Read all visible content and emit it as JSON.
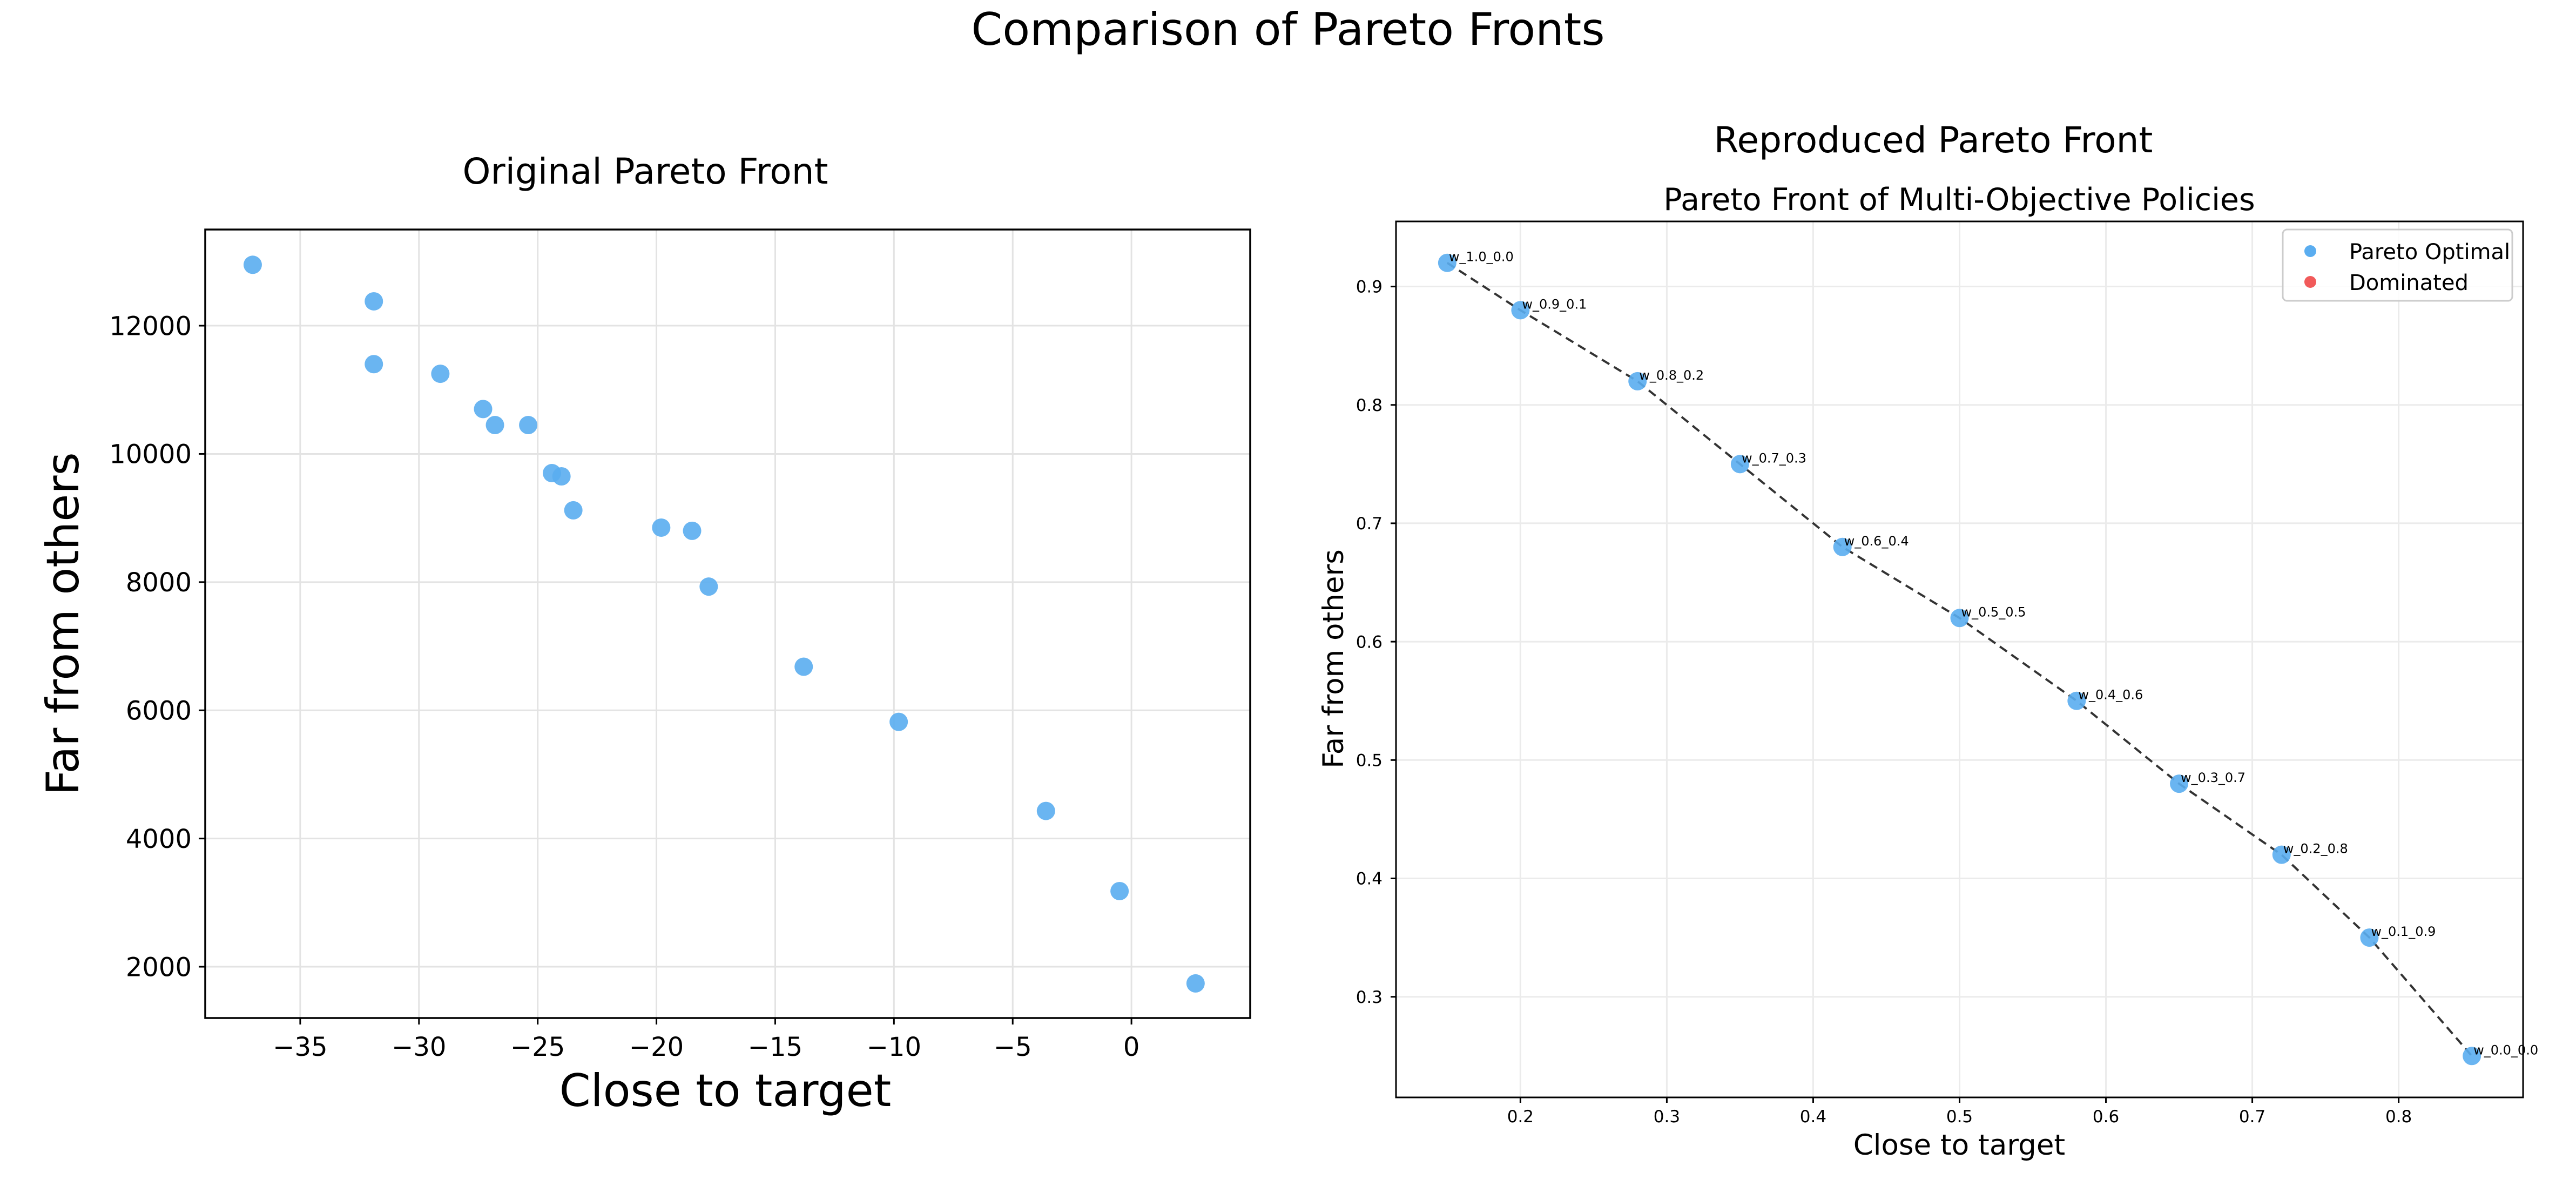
{
  "figure": {
    "suptitle": "Comparison of Pareto Fronts"
  },
  "chart_data": [
    {
      "type": "scatter",
      "panel_title": "Original Pareto Front",
      "xlabel": "Close to target",
      "ylabel": "Far from others",
      "xlim": [
        -39,
        5
      ],
      "ylim": [
        1200,
        13500
      ],
      "xticks": [
        -35,
        -30,
        -25,
        -20,
        -15,
        -10,
        -5,
        0
      ],
      "xtick_labels": [
        "−35",
        "−30",
        "−25",
        "−20",
        "−15",
        "−10",
        "−5",
        "0"
      ],
      "yticks": [
        2000,
        4000,
        6000,
        8000,
        10000,
        12000
      ],
      "yticks_labels": [
        "2000",
        "4000",
        "6000",
        "8000",
        "10000",
        "12000"
      ],
      "grid": true,
      "color": "#5aadf0",
      "points": [
        {
          "x": -37.0,
          "y": 12950
        },
        {
          "x": -31.9,
          "y": 12380
        },
        {
          "x": -31.9,
          "y": 11400
        },
        {
          "x": -29.1,
          "y": 11250
        },
        {
          "x": -27.3,
          "y": 10700
        },
        {
          "x": -26.8,
          "y": 10450
        },
        {
          "x": -25.4,
          "y": 10450
        },
        {
          "x": -24.4,
          "y": 9700
        },
        {
          "x": -24.0,
          "y": 9650
        },
        {
          "x": -23.5,
          "y": 9120
        },
        {
          "x": -19.8,
          "y": 8850
        },
        {
          "x": -18.5,
          "y": 8800
        },
        {
          "x": -17.8,
          "y": 7930
        },
        {
          "x": -13.8,
          "y": 6680
        },
        {
          "x": -9.8,
          "y": 5820
        },
        {
          "x": -3.6,
          "y": 4430
        },
        {
          "x": -0.5,
          "y": 3180
        },
        {
          "x": 2.7,
          "y": 1740
        }
      ]
    },
    {
      "type": "scatter",
      "panel_suptitle": "Reproduced Pareto Front",
      "panel_title": "Pareto Front of Multi-Objective Policies",
      "xlabel": "Close to target",
      "ylabel": "Far from others",
      "xlim": [
        0.115,
        0.885
      ],
      "ylim": [
        0.215,
        0.955
      ],
      "xticks": [
        0.2,
        0.3,
        0.4,
        0.5,
        0.6,
        0.7,
        0.8
      ],
      "xtick_labels": [
        "0.2",
        "0.3",
        "0.4",
        "0.5",
        "0.6",
        "0.7",
        "0.8"
      ],
      "yticks": [
        0.3,
        0.4,
        0.5,
        0.6,
        0.7,
        0.8,
        0.9
      ],
      "yticks_labels": [
        "0.3",
        "0.4",
        "0.5",
        "0.6",
        "0.7",
        "0.8",
        "0.9"
      ],
      "grid": true,
      "legend_position": "top-right",
      "legend": [
        {
          "label": "Pareto Optimal",
          "color": "#5aadf0"
        },
        {
          "label": "Dominated",
          "color": "#f15a5a"
        }
      ],
      "front_line": {
        "color": "#333333",
        "style": "dashed"
      },
      "points": [
        {
          "x": 0.15,
          "y": 0.92,
          "label": "w_1.0_0.0"
        },
        {
          "x": 0.2,
          "y": 0.88,
          "label": "w_0.9_0.1"
        },
        {
          "x": 0.28,
          "y": 0.82,
          "label": "w_0.8_0.2"
        },
        {
          "x": 0.35,
          "y": 0.75,
          "label": "w_0.7_0.3"
        },
        {
          "x": 0.42,
          "y": 0.68,
          "label": "w_0.6_0.4"
        },
        {
          "x": 0.5,
          "y": 0.62,
          "label": "w_0.5_0.5"
        },
        {
          "x": 0.58,
          "y": 0.55,
          "label": "w_0.4_0.6"
        },
        {
          "x": 0.65,
          "y": 0.48,
          "label": "w_0.3_0.7"
        },
        {
          "x": 0.72,
          "y": 0.42,
          "label": "w_0.2_0.8"
        },
        {
          "x": 0.78,
          "y": 0.35,
          "label": "w_0.1_0.9"
        },
        {
          "x": 0.85,
          "y": 0.25,
          "label": "w_0.0_0.0"
        }
      ]
    }
  ]
}
